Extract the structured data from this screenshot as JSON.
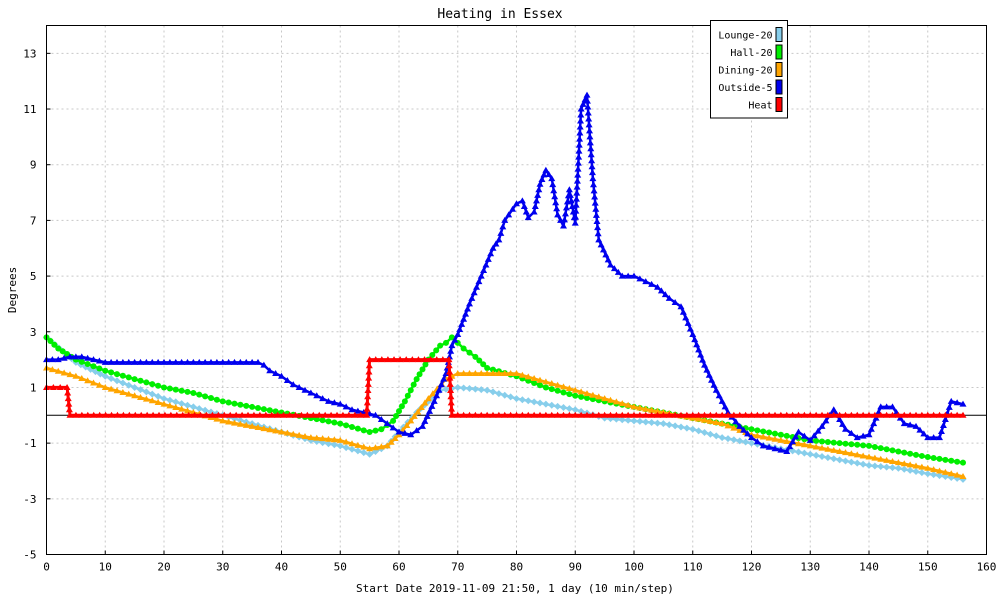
{
  "chart_data": {
    "type": "line",
    "title": "Heating in Essex",
    "xlabel": "Start Date 2019-11-09 21:50, 1 day (10 min/step)",
    "ylabel": "Degrees",
    "xlim": [
      0,
      160
    ],
    "ylim": [
      -5,
      14
    ],
    "x_ticks": [
      0,
      10,
      20,
      30,
      40,
      50,
      60,
      70,
      80,
      90,
      100,
      110,
      120,
      130,
      140,
      150,
      160
    ],
    "y_ticks": [
      -5,
      -3,
      -1,
      1,
      3,
      5,
      7,
      9,
      11,
      13
    ],
    "grid": true,
    "legend_position": "top-right",
    "series": [
      {
        "name": "Lounge-20",
        "color": "#87ceeb",
        "marker": "diamond",
        "x": [
          0,
          5,
          10,
          15,
          20,
          25,
          30,
          35,
          40,
          45,
          50,
          55,
          58,
          60,
          63,
          65,
          67,
          70,
          75,
          80,
          85,
          90,
          95,
          100,
          105,
          110,
          115,
          120,
          125,
          130,
          135,
          140,
          145,
          150,
          156
        ],
        "y": [
          2.8,
          1.9,
          1.4,
          1.0,
          0.6,
          0.3,
          0.0,
          -0.3,
          -0.6,
          -0.9,
          -1.1,
          -1.4,
          -1.1,
          -0.6,
          0.1,
          0.5,
          0.9,
          1.0,
          0.9,
          0.6,
          0.4,
          0.2,
          -0.1,
          -0.2,
          -0.3,
          -0.5,
          -0.8,
          -1.0,
          -1.2,
          -1.4,
          -1.6,
          -1.8,
          -1.9,
          -2.1,
          -2.3
        ]
      },
      {
        "name": "Hall-20",
        "color": "#00ee00",
        "marker": "circle",
        "x": [
          0,
          2,
          5,
          10,
          15,
          20,
          25,
          30,
          35,
          40,
          45,
          50,
          55,
          57,
          59,
          61,
          63,
          65,
          67,
          68,
          69,
          70,
          71,
          73,
          75,
          80,
          85,
          90,
          95,
          100,
          105,
          110,
          115,
          120,
          125,
          130,
          135,
          140,
          145,
          150,
          156
        ],
        "y": [
          2.8,
          2.4,
          2.0,
          1.6,
          1.3,
          1.0,
          0.8,
          0.5,
          0.3,
          0.1,
          -0.1,
          -0.3,
          -0.6,
          -0.5,
          -0.2,
          0.5,
          1.3,
          2.0,
          2.5,
          2.6,
          2.8,
          2.6,
          2.4,
          2.1,
          1.7,
          1.4,
          1.0,
          0.7,
          0.5,
          0.3,
          0.1,
          -0.1,
          -0.3,
          -0.5,
          -0.7,
          -0.9,
          -1.0,
          -1.1,
          -1.3,
          -1.5,
          -1.7
        ]
      },
      {
        "name": "Dining-20",
        "color": "#ffa500",
        "marker": "triangle",
        "x": [
          0,
          5,
          10,
          15,
          20,
          25,
          30,
          35,
          40,
          45,
          50,
          55,
          58,
          60,
          62,
          65,
          68,
          70,
          75,
          80,
          85,
          90,
          95,
          100,
          105,
          110,
          115,
          120,
          125,
          130,
          135,
          140,
          145,
          150,
          156
        ],
        "y": [
          1.7,
          1.4,
          1.0,
          0.7,
          0.4,
          0.1,
          -0.2,
          -0.4,
          -0.6,
          -0.8,
          -0.9,
          -1.2,
          -1.1,
          -0.7,
          -0.2,
          0.6,
          1.3,
          1.5,
          1.5,
          1.5,
          1.2,
          0.9,
          0.6,
          0.3,
          0.1,
          -0.1,
          -0.3,
          -0.7,
          -0.9,
          -1.1,
          -1.3,
          -1.5,
          -1.7,
          -1.9,
          -2.2
        ]
      },
      {
        "name": "Outside-5",
        "color": "#0000ee",
        "marker": "triangle",
        "x": [
          0,
          2,
          4,
          6,
          8,
          10,
          12,
          14,
          16,
          18,
          20,
          22,
          24,
          26,
          28,
          30,
          32,
          34,
          36,
          37,
          38,
          40,
          42,
          44,
          46,
          48,
          50,
          52,
          54,
          56,
          58,
          60,
          62,
          64,
          66,
          68,
          69,
          70,
          72,
          74,
          76,
          77,
          78,
          80,
          81,
          82,
          83,
          84,
          85,
          86,
          87,
          88,
          89,
          90,
          91,
          92,
          93,
          94,
          96,
          98,
          100,
          102,
          104,
          106,
          108,
          110,
          112,
          114,
          116,
          118,
          120,
          122,
          124,
          126,
          128,
          130,
          132,
          134,
          136,
          138,
          140,
          142,
          144,
          146,
          148,
          150,
          152,
          154,
          156
        ],
        "y": [
          2.0,
          2.0,
          2.1,
          2.1,
          2.0,
          1.9,
          1.9,
          1.9,
          1.9,
          1.9,
          1.9,
          1.9,
          1.9,
          1.9,
          1.9,
          1.9,
          1.9,
          1.9,
          1.9,
          1.8,
          1.6,
          1.4,
          1.1,
          0.9,
          0.7,
          0.5,
          0.4,
          0.2,
          0.1,
          0.0,
          -0.3,
          -0.6,
          -0.7,
          -0.4,
          0.5,
          1.5,
          2.5,
          2.9,
          4.0,
          5.0,
          6.0,
          6.3,
          7.0,
          7.6,
          7.7,
          7.1,
          7.3,
          8.3,
          8.8,
          8.5,
          7.2,
          6.8,
          8.1,
          6.9,
          11.0,
          11.5,
          8.5,
          6.3,
          5.4,
          5.0,
          5.0,
          4.8,
          4.6,
          4.2,
          3.9,
          2.9,
          1.8,
          0.9,
          0.1,
          -0.4,
          -0.8,
          -1.1,
          -1.2,
          -1.3,
          -0.6,
          -0.9,
          -0.4,
          0.2,
          -0.5,
          -0.8,
          -0.7,
          0.3,
          0.3,
          -0.3,
          -0.4,
          -0.8,
          -0.8,
          0.5,
          0.4
        ]
      },
      {
        "name": "Heat",
        "color": "#ff0000",
        "marker": "triangle",
        "step": true,
        "x": [
          0,
          3.5,
          4,
          54.5,
          55,
          68.5,
          69,
          156
        ],
        "y": [
          1.0,
          1.0,
          0.0,
          0.0,
          2.0,
          2.0,
          0.0,
          0.0
        ]
      }
    ]
  }
}
